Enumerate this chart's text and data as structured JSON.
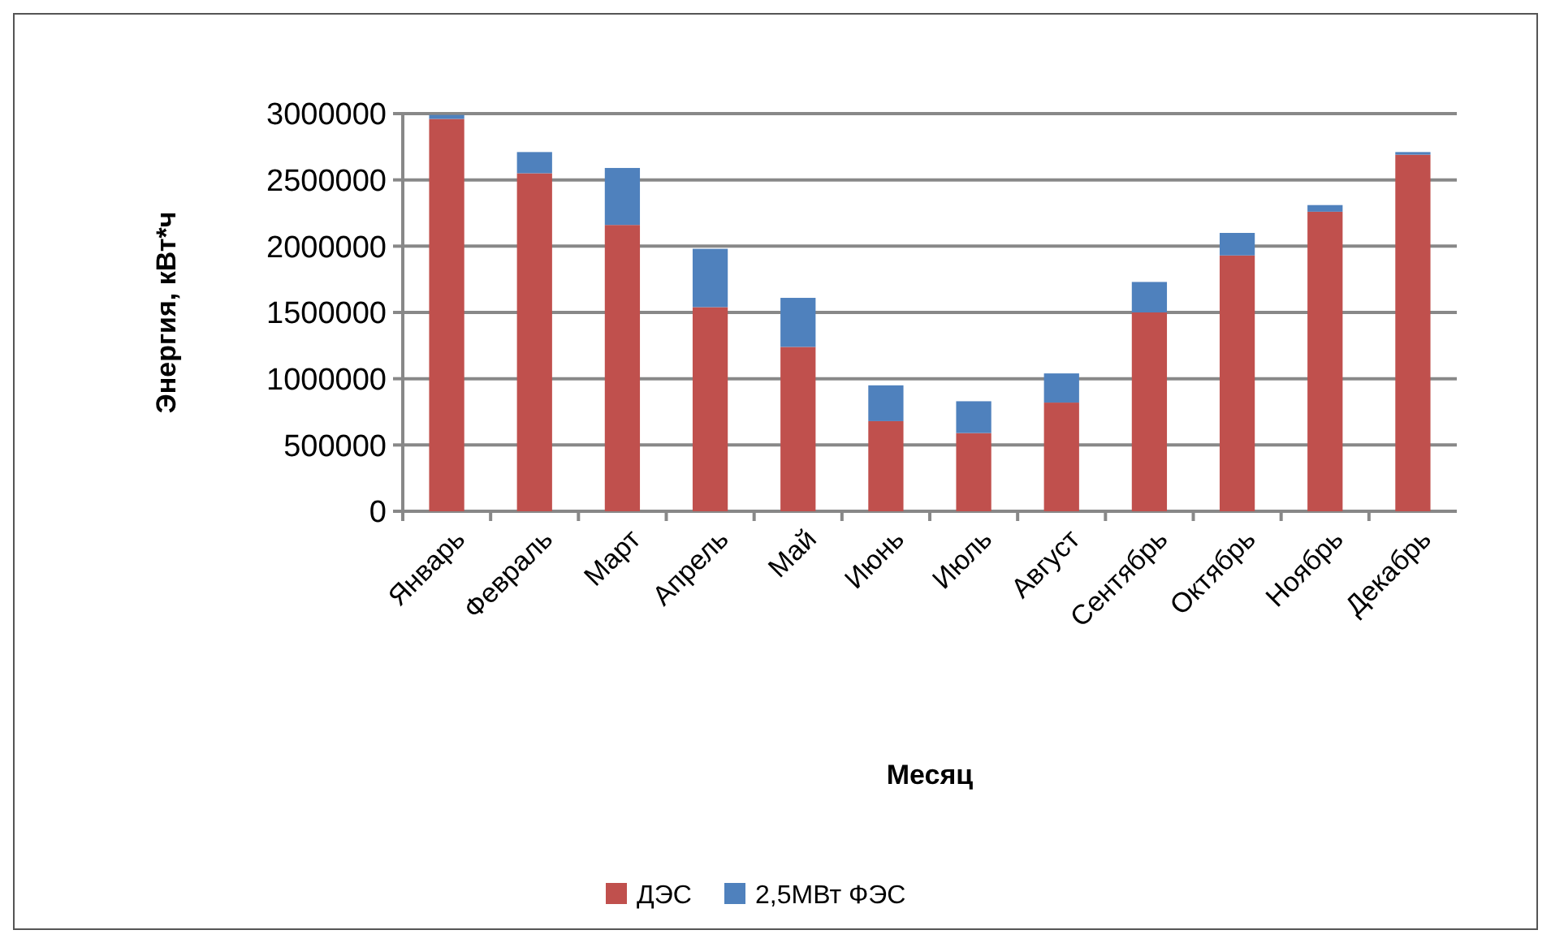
{
  "chart_data": {
    "type": "bar",
    "stacked": true,
    "xlabel": "Месяц",
    "ylabel": "Энергия, кВт*ч",
    "categories": [
      "Январь",
      "Февраль",
      "Март",
      "Апрель",
      "Май",
      "Июнь",
      "Июль",
      "Август",
      "Сентябрь",
      "Октябрь",
      "Ноябрь",
      "Декабрь"
    ],
    "series": [
      {
        "name": "ДЭС",
        "color": "#c0504d",
        "values": [
          2960000,
          2550000,
          2160000,
          1540000,
          1240000,
          680000,
          590000,
          820000,
          1500000,
          1930000,
          2260000,
          2690000
        ]
      },
      {
        "name": "2,5МВт ФЭС",
        "color": "#4f81bd",
        "values": [
          30000,
          160000,
          430000,
          440000,
          370000,
          270000,
          240000,
          220000,
          230000,
          170000,
          50000,
          20000
        ]
      }
    ],
    "ylim": [
      0,
      3000000
    ],
    "yticks": [
      0,
      500000,
      1000000,
      1500000,
      2000000,
      2500000,
      3000000
    ],
    "grid": "y",
    "legend": "bottom"
  }
}
